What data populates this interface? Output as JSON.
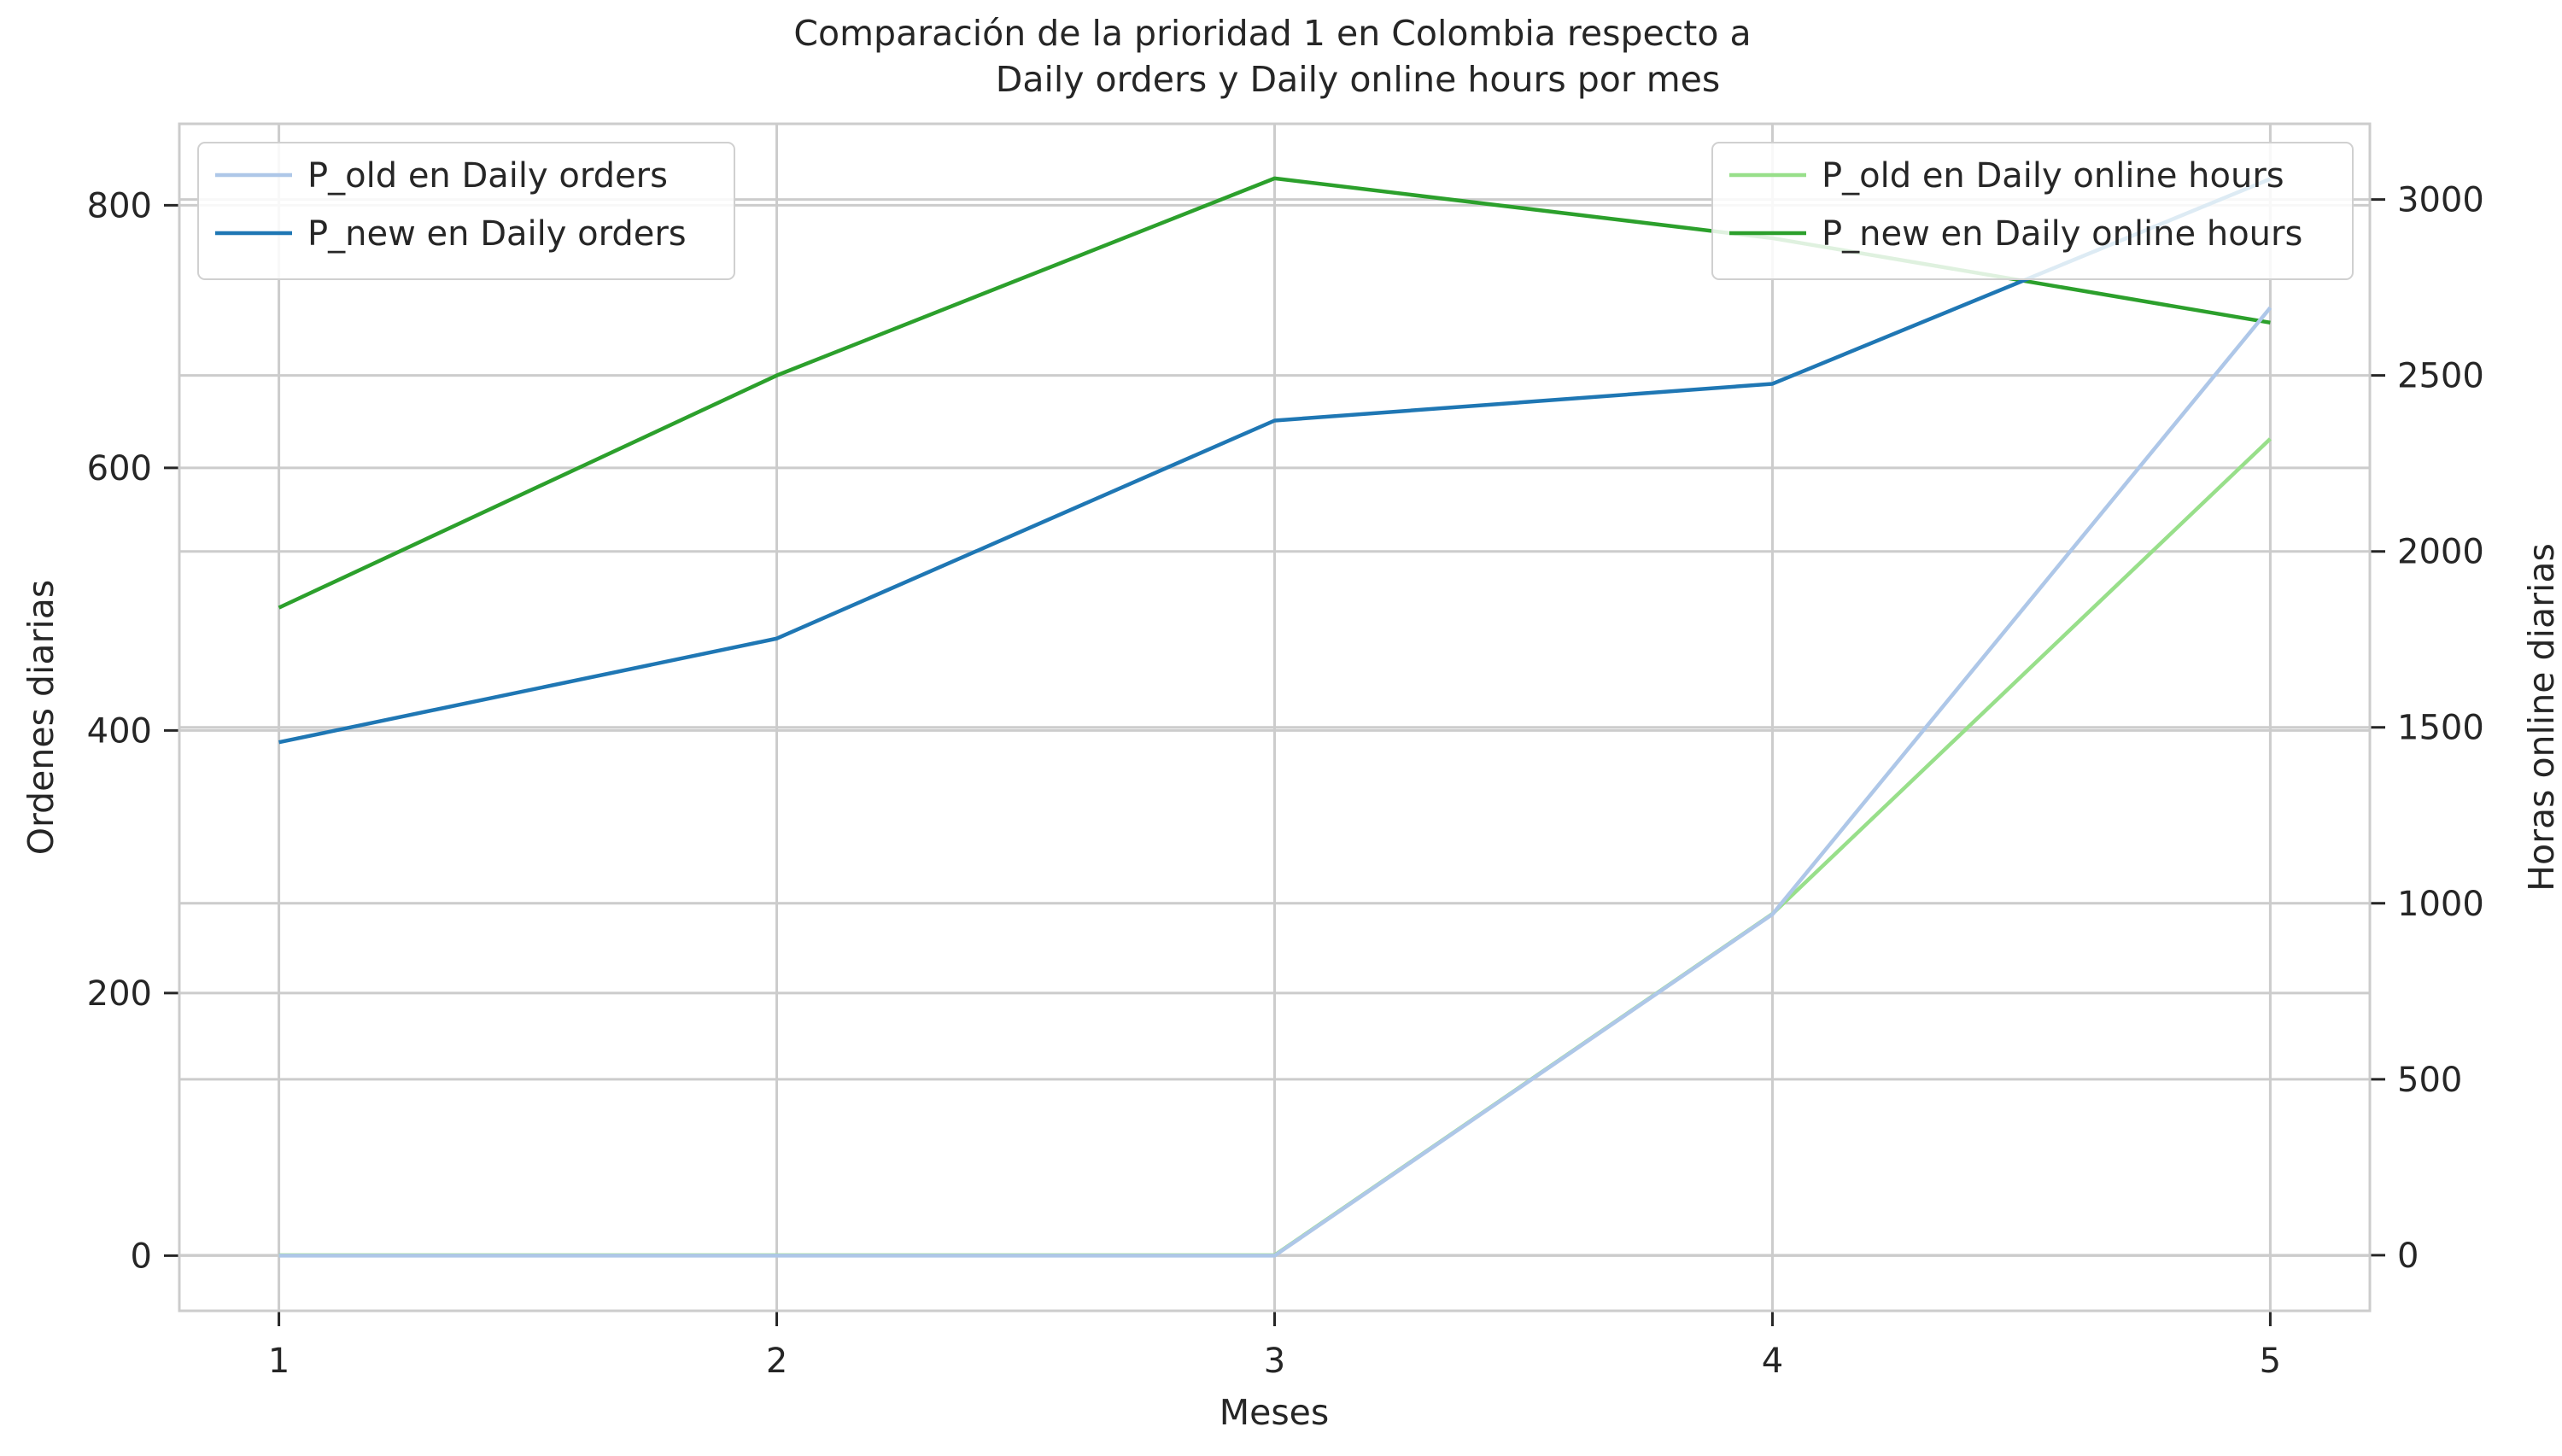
{
  "chart_data": {
    "type": "line",
    "title_line1": "Comparación de la prioridad 1 en Colombia respecto a",
    "title_line2": "Daily orders y Daily online hours por mes",
    "xlabel": "Meses",
    "ylabel_left": "Ordenes diarias",
    "ylabel_right": "Horas online diarias",
    "x": [
      1,
      2,
      3,
      4,
      5
    ],
    "xlim": [
      0.8,
      5.2
    ],
    "ylim_left": [
      -42,
      862
    ],
    "ylim_right": [
      -158,
      3215
    ],
    "yticks_left": [
      0,
      200,
      400,
      600,
      800
    ],
    "yticks_right": [
      0,
      500,
      1000,
      1500,
      2000,
      2500,
      3000
    ],
    "grid": true,
    "legend_left_position": "upper-left",
    "legend_right_position": "upper-right",
    "series_left": [
      {
        "name": "P_old en Daily orders",
        "color": "#aec7e8",
        "values": [
          0,
          0,
          0,
          260,
          722
        ]
      },
      {
        "name": "P_new en Daily orders",
        "color": "#1f77b4",
        "values": [
          391,
          470,
          636,
          664,
          820
        ]
      }
    ],
    "series_right": [
      {
        "name": "P_old en Daily online hours",
        "color": "#98df8a",
        "values": [
          0,
          0,
          0,
          970,
          2320
        ]
      },
      {
        "name": "P_new en Daily online hours",
        "color": "#2ca02c",
        "values": [
          1840,
          2500,
          3060,
          2890,
          2650
        ]
      }
    ]
  }
}
